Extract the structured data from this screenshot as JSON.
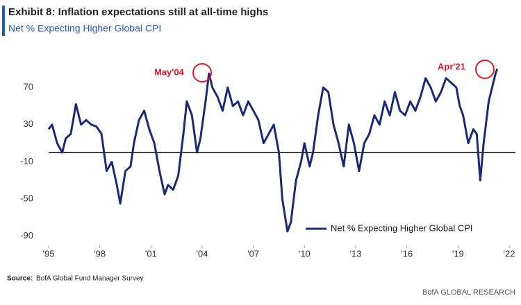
{
  "chart_data": {
    "type": "line",
    "title": "Exhibit 8: Inflation expectations still at all-time highs",
    "subtitle": "Net % Expecting Higher Global CPI",
    "annotations": [
      "May'04",
      "Apr'21"
    ],
    "source_label": "Source:",
    "source": "BofA Global Fund Manager Survey",
    "brand": "BofA GLOBAL RESEARCH",
    "legend": "lower right",
    "grid": false,
    "xlim": [
      1995,
      2022
    ],
    "ylim": [
      -100,
      100
    ],
    "yticks": [
      70,
      30,
      -10,
      -50,
      -90
    ],
    "xticks": [
      {
        "value": 1995,
        "label": "'95"
      },
      {
        "value": 1998,
        "label": "'98"
      },
      {
        "value": 2001,
        "label": "'01"
      },
      {
        "value": 2004,
        "label": "'04"
      },
      {
        "value": 2007,
        "label": "'07"
      },
      {
        "value": 2010,
        "label": "'10"
      },
      {
        "value": 2013,
        "label": "'13"
      },
      {
        "value": 2016,
        "label": "'16"
      },
      {
        "value": 2019,
        "label": "'19"
      },
      {
        "value": 2022,
        "label": "'22"
      }
    ],
    "x": [
      1995.0,
      1995.2,
      1995.5,
      1995.8,
      1996.0,
      1996.3,
      1996.6,
      1996.9,
      1997.2,
      1997.5,
      1997.8,
      1998.1,
      1998.4,
      1998.7,
      1999.0,
      1999.2,
      1999.5,
      1999.8,
      2000.0,
      2000.3,
      2000.6,
      2000.9,
      2001.2,
      2001.5,
      2001.8,
      2002.0,
      2002.3,
      2002.6,
      2002.9,
      2003.1,
      2003.4,
      2003.7,
      2003.9,
      2004.2,
      2004.4,
      2004.6,
      2004.9,
      2005.2,
      2005.5,
      2005.8,
      2006.1,
      2006.4,
      2006.7,
      2007.0,
      2007.3,
      2007.6,
      2007.9,
      2008.2,
      2008.5,
      2008.7,
      2009.0,
      2009.2,
      2009.5,
      2009.8,
      2010.0,
      2010.3,
      2010.5,
      2010.8,
      2011.1,
      2011.4,
      2011.7,
      2012.0,
      2012.3,
      2012.6,
      2012.9,
      2013.2,
      2013.5,
      2013.8,
      2014.1,
      2014.4,
      2014.7,
      2015.0,
      2015.3,
      2015.6,
      2015.9,
      2016.2,
      2016.5,
      2016.8,
      2017.1,
      2017.4,
      2017.7,
      2018.0,
      2018.3,
      2018.6,
      2018.9,
      2019.1,
      2019.3,
      2019.6,
      2019.9,
      2020.1,
      2020.3,
      2020.5,
      2020.8,
      2021.0,
      2021.2,
      2021.3
    ],
    "series": [
      {
        "name": "Net % Expecting Higher Global CPI",
        "color": "#1a2a78",
        "values": [
          25,
          30,
          10,
          0,
          15,
          20,
          52,
          30,
          35,
          30,
          28,
          20,
          -20,
          -10,
          -35,
          -55,
          -20,
          -15,
          10,
          35,
          45,
          25,
          10,
          -20,
          -45,
          -35,
          -40,
          -25,
          20,
          55,
          40,
          0,
          15,
          55,
          85,
          70,
          60,
          45,
          70,
          50,
          55,
          40,
          55,
          45,
          35,
          10,
          20,
          30,
          0,
          -50,
          -85,
          -75,
          -30,
          -10,
          10,
          -15,
          0,
          40,
          70,
          65,
          30,
          10,
          -15,
          30,
          10,
          -20,
          10,
          20,
          40,
          30,
          55,
          40,
          65,
          45,
          40,
          55,
          45,
          60,
          80,
          70,
          55,
          65,
          80,
          75,
          70,
          50,
          40,
          10,
          25,
          20,
          -30,
          10,
          55,
          70,
          85,
          90
        ]
      }
    ]
  }
}
